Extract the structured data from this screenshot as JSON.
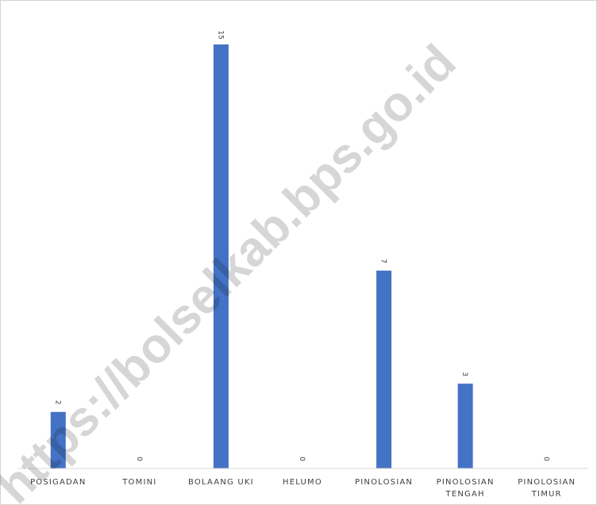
{
  "chart_data": {
    "type": "bar",
    "title": "",
    "xlabel": "",
    "ylabel": "",
    "categories": [
      "POSIGADAN",
      "TOMINI",
      "BOLAANG UKI",
      "HELUMO",
      "PINOLOSIAN",
      "PINOLOSIAN TENGAH",
      "PINOLOSIAN TIMUR"
    ],
    "category_lines": [
      [
        "POSIGADAN"
      ],
      [
        "TOMINI"
      ],
      [
        "BOLAANG UKI"
      ],
      [
        "HELUMO"
      ],
      [
        "PINOLOSIAN"
      ],
      [
        "PINOLOSIAN",
        "TENGAH"
      ],
      [
        "PINOLOSIAN",
        "TIMUR"
      ]
    ],
    "values": [
      2,
      0,
      15,
      0,
      7,
      3,
      0
    ],
    "value_labels": [
      "2",
      "0",
      "15",
      "0",
      "7",
      "3",
      "0"
    ],
    "ylim": [
      0,
      15
    ],
    "grid": false,
    "legend": "none",
    "bar_color": "#4472c4"
  },
  "watermark": "https://bolselkab.bps.go.id"
}
